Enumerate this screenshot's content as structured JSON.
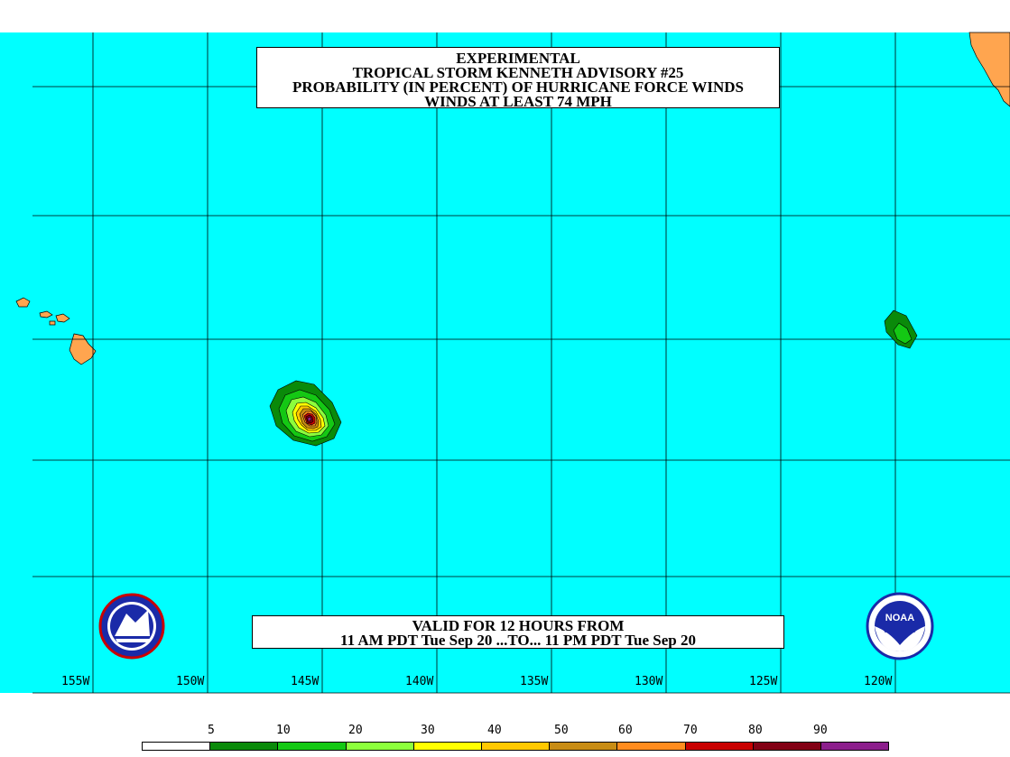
{
  "title": {
    "line1": "EXPERIMENTAL",
    "line2": "TROPICAL STORM KENNETH ADVISORY #25",
    "line3": "PROBABILITY (IN PERCENT) OF HURRICANE FORCE WINDS",
    "line4": "WINDS AT LEAST 74 MPH"
  },
  "valid": {
    "line1": "VALID FOR 12 HOURS FROM",
    "line2": "11 AM PDT Tue Sep 20 ...TO... 11 PM PDT Tue Sep 20"
  },
  "longitude_labels": [
    "155W",
    "150W",
    "145W",
    "140W",
    "135W",
    "130W",
    "125W",
    "120W"
  ],
  "legend": {
    "labels": [
      "5",
      "10",
      "20",
      "30",
      "40",
      "50",
      "60",
      "70",
      "80",
      "90"
    ],
    "colors": [
      "#ffffff",
      "#0a8a0a",
      "#14c814",
      "#8cff3c",
      "#ffff00",
      "#ffc800",
      "#c88c14",
      "#ff8c1e",
      "#c80000",
      "#820014",
      "#8c1e8c"
    ]
  },
  "colors": {
    "ocean": "#00ffff",
    "land": "#ffa54f",
    "grid": "#000000"
  },
  "icons": {
    "left_logo": "nws-logo-icon",
    "right_logo": "noaa-logo-icon"
  }
}
